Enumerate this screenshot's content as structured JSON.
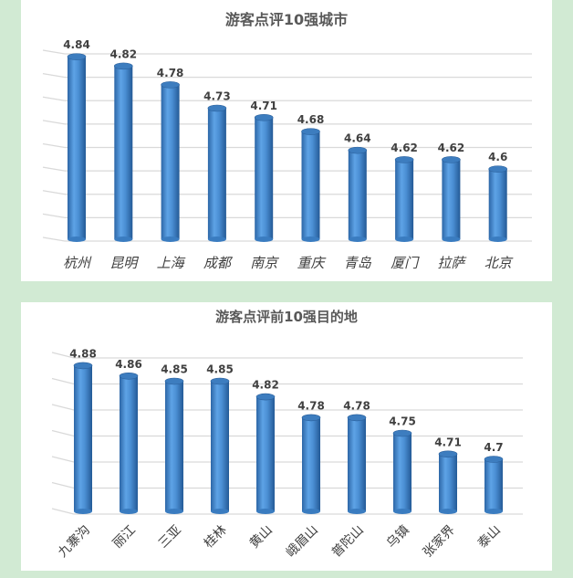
{
  "colors": {
    "background": "#d1ead3",
    "bar": "#4a8fd6",
    "bar_dark": "#2f6aa8",
    "grid": "#d9d9d9",
    "text": "#404040"
  },
  "chart_data": [
    {
      "type": "bar",
      "style": "3d-cylinder",
      "title": "游客点评10强城市",
      "categories": [
        "杭州",
        "昆明",
        "上海",
        "成都",
        "南京",
        "重庆",
        "青岛",
        "厦门",
        "拉萨",
        "北京"
      ],
      "values": [
        4.84,
        4.82,
        4.78,
        4.73,
        4.71,
        4.68,
        4.64,
        4.62,
        4.62,
        4.6
      ],
      "ylim": [
        4.45,
        4.85
      ],
      "ystep": 0.05,
      "grid": true,
      "y_tick_labels_shown": false,
      "label_rotation": 0
    },
    {
      "type": "bar",
      "style": "3d-cylinder",
      "title": "游客点评前10强目的地",
      "categories": [
        "九寨沟",
        "丽江",
        "三亚",
        "桂林",
        "黄山",
        "峨眉山",
        "普陀山",
        "乌镇",
        "张家界",
        "泰山"
      ],
      "values": [
        4.88,
        4.86,
        4.85,
        4.85,
        4.82,
        4.78,
        4.78,
        4.75,
        4.71,
        4.7
      ],
      "ylim": [
        4.6,
        4.9
      ],
      "ystep": 0.05,
      "grid": true,
      "y_tick_labels_shown": false,
      "label_rotation": -45
    }
  ]
}
